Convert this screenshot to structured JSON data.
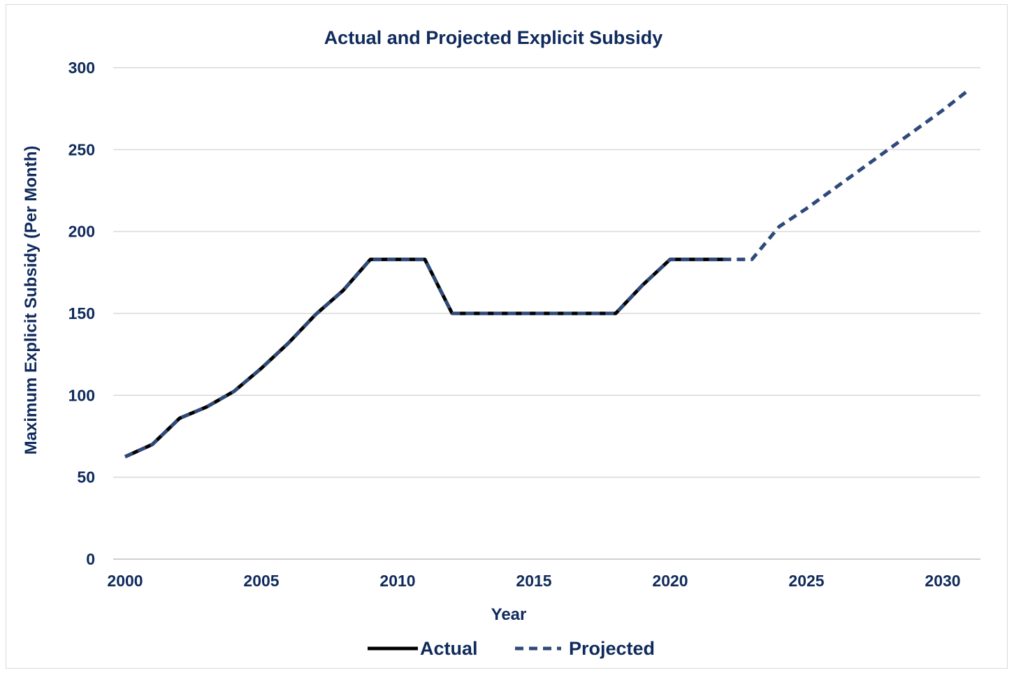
{
  "chart_data": {
    "type": "line",
    "title": "Actual and Projected Explicit Subsidy",
    "xlabel": "Year",
    "ylabel": "Maximum Explicit Subsidy (Per Month)",
    "xlim": [
      2000,
      2031
    ],
    "ylim": [
      0,
      300
    ],
    "xticks": [
      2000,
      2005,
      2010,
      2015,
      2020,
      2025,
      2030
    ],
    "yticks": [
      0,
      50,
      100,
      150,
      200,
      250,
      300
    ],
    "grid": true,
    "legend_position": "bottom",
    "series": [
      {
        "name": "Actual",
        "style": "solid",
        "color": "#000000",
        "x": [
          2000,
          2001,
          2002,
          2003,
          2004,
          2005,
          2006,
          2007,
          2008,
          2009,
          2010,
          2011,
          2012,
          2013,
          2014,
          2015,
          2016,
          2017,
          2018,
          2019,
          2020,
          2021,
          2022
        ],
        "y": [
          62.5,
          70,
          86,
          93,
          102.5,
          116.5,
          132,
          149.5,
          164,
          183,
          183,
          183,
          150,
          150,
          150,
          150,
          150,
          150,
          150,
          167.5,
          183,
          183,
          183
        ]
      },
      {
        "name": "Projected",
        "style": "dashed",
        "color": "#2f4a7a",
        "x": [
          2000,
          2001,
          2002,
          2003,
          2004,
          2005,
          2006,
          2007,
          2008,
          2009,
          2010,
          2011,
          2012,
          2013,
          2014,
          2015,
          2016,
          2017,
          2018,
          2019,
          2020,
          2021,
          2022,
          2023,
          2024,
          2025,
          2026,
          2027,
          2028,
          2029,
          2030,
          2031
        ],
        "y": [
          62.5,
          70,
          86,
          93,
          102.5,
          116.5,
          132,
          149.5,
          164,
          183,
          183,
          183,
          150,
          150,
          150,
          150,
          150,
          150,
          150,
          167.5,
          183,
          183,
          183,
          183,
          203,
          214,
          226,
          238,
          250,
          262,
          274,
          287
        ]
      }
    ]
  },
  "colors": {
    "text": "#0f2a5c",
    "grid": "#d9d9d9",
    "axis": "#bfbfbf"
  }
}
